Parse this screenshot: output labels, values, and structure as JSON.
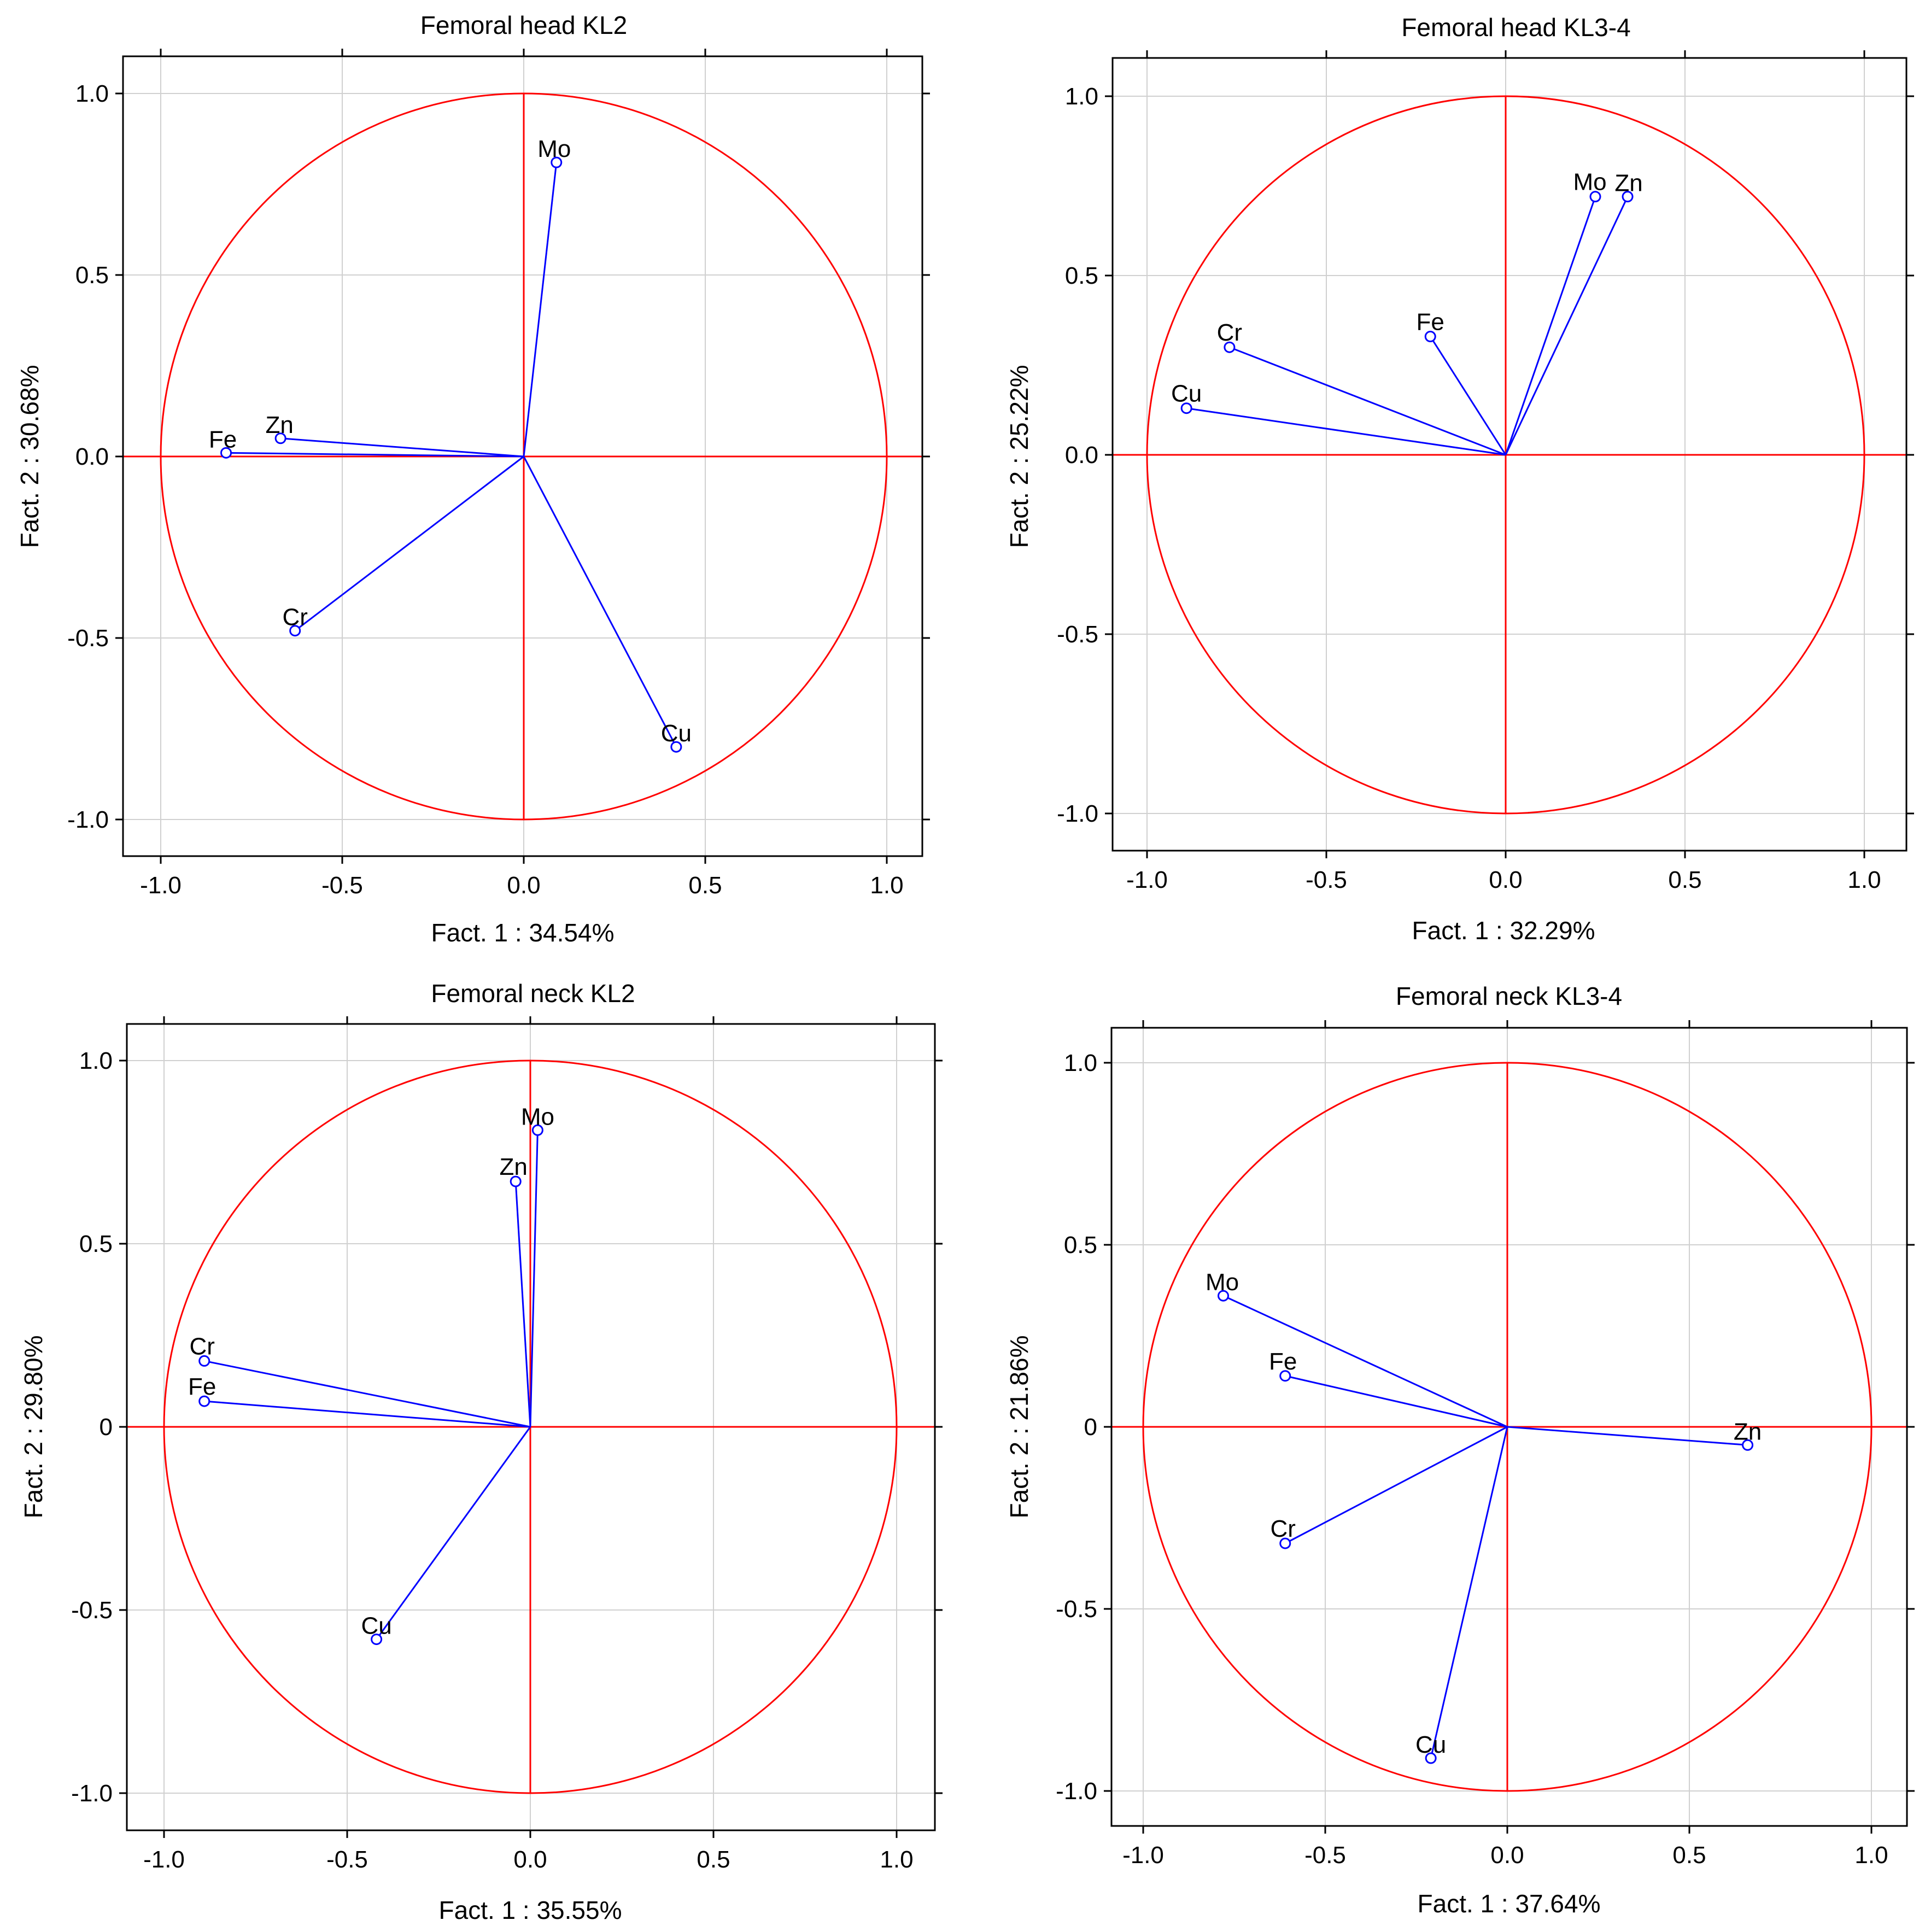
{
  "colors": {
    "circle": "#ff0000",
    "vector": "#0000ff",
    "grid": "#d0d0d0",
    "frame": "#000000"
  },
  "chart_data": [
    {
      "type": "scatter",
      "title": "Femoral head KL2",
      "xlabel": "Fact. 1 : 34.54%",
      "ylabel": "Fact. 2 : 30.68%",
      "xlim": [
        -1.1,
        1.1
      ],
      "ylim": [
        -1.1,
        1.1
      ],
      "xticks": [
        "-1.0",
        "-0.5",
        "0.0",
        "0.5",
        "1.0"
      ],
      "yticks": [
        "-1.0",
        "-0.5",
        "0.0",
        "0.5",
        "1.0"
      ],
      "grid": true,
      "points": [
        {
          "label": "Mo",
          "x": 0.09,
          "y": 0.81
        },
        {
          "label": "Fe",
          "x": -0.82,
          "y": 0.01
        },
        {
          "label": "Zn",
          "x": -0.67,
          "y": 0.05
        },
        {
          "label": "Cr",
          "x": -0.63,
          "y": -0.48
        },
        {
          "label": "Cu",
          "x": 0.42,
          "y": -0.8
        }
      ]
    },
    {
      "type": "scatter",
      "title": "Femoral head KL3-4",
      "xlabel": "Fact. 1 : 32.29%",
      "ylabel": "Fact. 2 : 25.22%",
      "xlim": [
        -1.1,
        1.1
      ],
      "ylim": [
        -1.1,
        1.1
      ],
      "xticks": [
        "-1.0",
        "-0.5",
        "0.0",
        "0.5",
        "1.0"
      ],
      "yticks": [
        "-1.0",
        "-0.5",
        "0.0",
        "0.5",
        "1.0"
      ],
      "grid": true,
      "points": [
        {
          "label": "Mo",
          "x": 0.25,
          "y": 0.72
        },
        {
          "label": "Zn",
          "x": 0.34,
          "y": 0.72
        },
        {
          "label": "Fe",
          "x": -0.21,
          "y": 0.33
        },
        {
          "label": "Cr",
          "x": -0.77,
          "y": 0.3
        },
        {
          "label": "Cu",
          "x": -0.89,
          "y": 0.13
        }
      ]
    },
    {
      "type": "scatter",
      "title": "Femoral neck KL2",
      "xlabel": "Fact. 1 : 35.55%",
      "ylabel": "Fact. 2 : 29.80%",
      "xlim": [
        -1.1,
        1.1
      ],
      "ylim": [
        -1.1,
        1.1
      ],
      "xticks": [
        "-1.0",
        "-0.5",
        "0.0",
        "0.5",
        "1.0"
      ],
      "yticks": [
        "-1.0",
        "-0.5",
        "0",
        "0.5",
        "1.0"
      ],
      "grid": true,
      "points": [
        {
          "label": "Mo",
          "x": 0.02,
          "y": 0.81
        },
        {
          "label": "Zn",
          "x": -0.04,
          "y": 0.67
        },
        {
          "label": "Cr",
          "x": -0.89,
          "y": 0.18
        },
        {
          "label": "Fe",
          "x": -0.89,
          "y": 0.07
        },
        {
          "label": "Cu",
          "x": -0.42,
          "y": -0.58
        }
      ]
    },
    {
      "type": "scatter",
      "title": "Femoral neck KL3-4",
      "xlabel": "Fact. 1 : 37.64%",
      "ylabel": "Fact. 2 : 21.86%",
      "xlim": [
        -1.1,
        1.1
      ],
      "ylim": [
        -1.1,
        1.1
      ],
      "xticks": [
        "-1.0",
        "-0.5",
        "0.0",
        "0.5",
        "1.0"
      ],
      "yticks": [
        "-1.0",
        "-0.5",
        "0",
        "0.5",
        "1.0"
      ],
      "grid": true,
      "points": [
        {
          "label": "Mo",
          "x": -0.78,
          "y": 0.36
        },
        {
          "label": "Fe",
          "x": -0.61,
          "y": 0.14
        },
        {
          "label": "Zn",
          "x": 0.66,
          "y": -0.05
        },
        {
          "label": "Cr",
          "x": -0.61,
          "y": -0.32
        },
        {
          "label": "Cu",
          "x": -0.21,
          "y": -0.91
        }
      ]
    }
  ]
}
